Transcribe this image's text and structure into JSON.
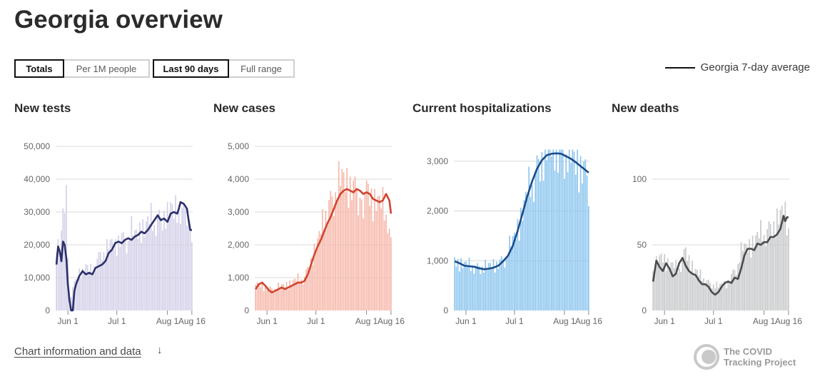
{
  "page": {
    "title": "Georgia overview",
    "toggles": {
      "metric": [
        {
          "label": "Totals",
          "active": true
        },
        {
          "label": "Per 1M people",
          "active": false
        }
      ],
      "range": [
        {
          "label": "Last 90 days",
          "active": true
        },
        {
          "label": "Full range",
          "active": false
        }
      ]
    },
    "legend": "Georgia 7-day average",
    "footer_link": "Chart information and data",
    "footer_arrow": "↓",
    "brand": {
      "line1": "The COVID",
      "line2": "Tracking Project"
    }
  },
  "chart_data": [
    {
      "type": "bar",
      "title": "New tests",
      "bar_color": "#d3d0e8",
      "line_color": "#2c2f6b",
      "ylim": [
        0,
        50000
      ],
      "yticks": [
        0,
        10000,
        20000,
        30000,
        40000,
        50000
      ],
      "ytick_labels": [
        "0",
        "10,000",
        "20,000",
        "30,000",
        "40,000",
        "50,000"
      ],
      "xtick_labels": [
        "Jun 1",
        "Jul 1",
        "Aug 1",
        "Aug 16"
      ],
      "xtick_days": [
        7,
        37,
        68,
        83
      ],
      "days": 84,
      "anchors": {
        "bars": [
          [
            0,
            22000
          ],
          [
            2,
            17000
          ],
          [
            4,
            28000
          ],
          [
            6,
            31000
          ],
          [
            8,
            3000
          ],
          [
            10,
            7000
          ],
          [
            12,
            9000
          ],
          [
            14,
            12000
          ],
          [
            16,
            11000
          ],
          [
            18,
            13000
          ],
          [
            20,
            12000
          ],
          [
            22,
            12000
          ],
          [
            24,
            14000
          ],
          [
            26,
            16000
          ],
          [
            28,
            18000
          ],
          [
            30,
            17000
          ],
          [
            32,
            19000
          ],
          [
            34,
            20000
          ],
          [
            36,
            19000
          ],
          [
            38,
            21000
          ],
          [
            40,
            22000
          ],
          [
            42,
            21000
          ],
          [
            44,
            22000
          ],
          [
            46,
            23000
          ],
          [
            48,
            22000
          ],
          [
            50,
            24000
          ],
          [
            52,
            25000
          ],
          [
            54,
            24000
          ],
          [
            56,
            26000
          ],
          [
            58,
            27000
          ],
          [
            60,
            26000
          ],
          [
            62,
            28000
          ],
          [
            64,
            27000
          ],
          [
            66,
            29000
          ],
          [
            68,
            28000
          ],
          [
            70,
            30000
          ],
          [
            72,
            29000
          ],
          [
            74,
            31000
          ],
          [
            76,
            30000
          ],
          [
            78,
            29000
          ],
          [
            80,
            31000
          ],
          [
            82,
            26000
          ],
          [
            83,
            17000
          ]
        ],
        "line": [
          [
            0,
            14000
          ],
          [
            1,
            19500
          ],
          [
            2,
            18000
          ],
          [
            3,
            15000
          ],
          [
            4,
            21000
          ],
          [
            5,
            20000
          ],
          [
            6,
            16000
          ],
          [
            7,
            8000
          ],
          [
            8,
            3000
          ],
          [
            9,
            0
          ],
          [
            10,
            0
          ],
          [
            11,
            6000
          ],
          [
            12,
            8000
          ],
          [
            14,
            10500
          ],
          [
            16,
            12000
          ],
          [
            18,
            11000
          ],
          [
            20,
            11500
          ],
          [
            22,
            11000
          ],
          [
            24,
            13000
          ],
          [
            26,
            13500
          ],
          [
            28,
            14000
          ],
          [
            30,
            15000
          ],
          [
            32,
            17500
          ],
          [
            34,
            18500
          ],
          [
            36,
            20500
          ],
          [
            38,
            21000
          ],
          [
            40,
            20500
          ],
          [
            42,
            21500
          ],
          [
            44,
            22000
          ],
          [
            46,
            21500
          ],
          [
            48,
            22500
          ],
          [
            50,
            23000
          ],
          [
            52,
            24000
          ],
          [
            54,
            23500
          ],
          [
            56,
            24500
          ],
          [
            58,
            26000
          ],
          [
            60,
            27500
          ],
          [
            62,
            29000
          ],
          [
            64,
            27500
          ],
          [
            66,
            28000
          ],
          [
            68,
            27000
          ],
          [
            70,
            29500
          ],
          [
            72,
            30000
          ],
          [
            74,
            29500
          ],
          [
            75,
            31000
          ],
          [
            76,
            33000
          ],
          [
            78,
            32500
          ],
          [
            80,
            31000
          ],
          [
            81,
            27500
          ],
          [
            82,
            24500
          ]
        ]
      }
    },
    {
      "type": "bar",
      "title": "New cases",
      "bar_color": "#f6b8aa",
      "line_color": "#d0442e",
      "ylim": [
        0,
        5000
      ],
      "yticks": [
        0,
        1000,
        2000,
        3000,
        4000,
        5000
      ],
      "ytick_labels": [
        "0",
        "1,000",
        "2,000",
        "3,000",
        "4,000",
        "5,000"
      ],
      "xtick_labels": [
        "Jun 1",
        "Jul 1",
        "Aug 1",
        "Aug 16"
      ],
      "xtick_days": [
        7,
        37,
        68,
        83
      ],
      "days": 84,
      "anchors": {
        "bars": [
          [
            0,
            800
          ],
          [
            5,
            700
          ],
          [
            10,
            650
          ],
          [
            15,
            700
          ],
          [
            20,
            800
          ],
          [
            25,
            900
          ],
          [
            30,
            1000
          ],
          [
            34,
            1500
          ],
          [
            38,
            2000
          ],
          [
            42,
            2800
          ],
          [
            45,
            3200
          ],
          [
            48,
            3400
          ],
          [
            50,
            3700
          ],
          [
            53,
            3900
          ],
          [
            56,
            3800
          ],
          [
            60,
            3700
          ],
          [
            63,
            3600
          ],
          [
            66,
            3500
          ],
          [
            69,
            3600
          ],
          [
            72,
            3300
          ],
          [
            75,
            3200
          ],
          [
            78,
            3100
          ],
          [
            81,
            2800
          ],
          [
            83,
            2000
          ]
        ],
        "line": [
          [
            0,
            650
          ],
          [
            2,
            800
          ],
          [
            4,
            850
          ],
          [
            6,
            750
          ],
          [
            8,
            620
          ],
          [
            10,
            550
          ],
          [
            12,
            600
          ],
          [
            14,
            650
          ],
          [
            16,
            700
          ],
          [
            18,
            650
          ],
          [
            20,
            700
          ],
          [
            22,
            750
          ],
          [
            24,
            800
          ],
          [
            26,
            850
          ],
          [
            28,
            850
          ],
          [
            30,
            900
          ],
          [
            32,
            1100
          ],
          [
            34,
            1400
          ],
          [
            36,
            1700
          ],
          [
            38,
            1950
          ],
          [
            40,
            2150
          ],
          [
            42,
            2400
          ],
          [
            44,
            2650
          ],
          [
            46,
            2850
          ],
          [
            48,
            3100
          ],
          [
            50,
            3350
          ],
          [
            52,
            3550
          ],
          [
            54,
            3650
          ],
          [
            56,
            3700
          ],
          [
            58,
            3650
          ],
          [
            60,
            3600
          ],
          [
            62,
            3700
          ],
          [
            64,
            3650
          ],
          [
            66,
            3550
          ],
          [
            68,
            3600
          ],
          [
            70,
            3550
          ],
          [
            72,
            3400
          ],
          [
            74,
            3350
          ],
          [
            76,
            3300
          ],
          [
            78,
            3350
          ],
          [
            80,
            3550
          ],
          [
            82,
            3350
          ],
          [
            83,
            2950
          ]
        ]
      }
    },
    {
      "type": "bar",
      "title": "Current hospitalizations",
      "bar_color": "#8cc5ee",
      "line_color": "#1a4b8c",
      "ylim": [
        0,
        3300
      ],
      "yticks": [
        0,
        1000,
        2000,
        3000
      ],
      "ytick_labels": [
        "0",
        "1,000",
        "2,000",
        "3,000"
      ],
      "xtick_labels": [
        "Jun 1",
        "Jul 1",
        "Aug 1",
        "Aug 16"
      ],
      "xtick_days": [
        7,
        37,
        68,
        83
      ],
      "days": 84,
      "anchors": {
        "bars": [
          [
            0,
            1000
          ],
          [
            5,
            900
          ],
          [
            10,
            880
          ],
          [
            15,
            850
          ],
          [
            20,
            860
          ],
          [
            25,
            900
          ],
          [
            30,
            1000
          ],
          [
            33,
            1150
          ],
          [
            36,
            1350
          ],
          [
            39,
            1650
          ],
          [
            42,
            1950
          ],
          [
            45,
            2250
          ],
          [
            48,
            2550
          ],
          [
            51,
            2800
          ],
          [
            54,
            3000
          ],
          [
            57,
            3150
          ],
          [
            60,
            3180
          ],
          [
            63,
            3200
          ],
          [
            66,
            3180
          ],
          [
            69,
            3100
          ],
          [
            72,
            3000
          ],
          [
            75,
            2900
          ],
          [
            78,
            2850
          ],
          [
            80,
            2800
          ],
          [
            83,
            2600
          ]
        ],
        "line": [
          [
            0,
            990
          ],
          [
            3,
            950
          ],
          [
            6,
            900
          ],
          [
            9,
            890
          ],
          [
            12,
            880
          ],
          [
            15,
            850
          ],
          [
            18,
            830
          ],
          [
            21,
            840
          ],
          [
            24,
            860
          ],
          [
            27,
            900
          ],
          [
            30,
            990
          ],
          [
            33,
            1100
          ],
          [
            36,
            1300
          ],
          [
            39,
            1600
          ],
          [
            42,
            1950
          ],
          [
            45,
            2300
          ],
          [
            48,
            2600
          ],
          [
            51,
            2850
          ],
          [
            54,
            3020
          ],
          [
            57,
            3120
          ],
          [
            60,
            3150
          ],
          [
            63,
            3160
          ],
          [
            66,
            3150
          ],
          [
            69,
            3100
          ],
          [
            72,
            3050
          ],
          [
            75,
            2980
          ],
          [
            78,
            2900
          ],
          [
            80,
            2850
          ],
          [
            83,
            2770
          ]
        ]
      }
    },
    {
      "type": "bar",
      "title": "New deaths",
      "bar_color": "#c8c9ca",
      "line_color": "#4a4b4c",
      "ylim": [
        0,
        125
      ],
      "yticks": [
        0,
        50,
        100
      ],
      "ytick_labels": [
        "0",
        "50",
        "100"
      ],
      "xtick_labels": [
        "Jun 1",
        "Jul 1",
        "Aug 1",
        "Aug 16"
      ],
      "xtick_days": [
        7,
        37,
        68,
        83
      ],
      "days": 84,
      "anchors": {
        "bars": [
          [
            0,
            30
          ],
          [
            5,
            40
          ],
          [
            10,
            35
          ],
          [
            15,
            30
          ],
          [
            20,
            45
          ],
          [
            25,
            30
          ],
          [
            30,
            25
          ],
          [
            35,
            20
          ],
          [
            40,
            18
          ],
          [
            45,
            20
          ],
          [
            50,
            30
          ],
          [
            55,
            45
          ],
          [
            60,
            50
          ],
          [
            65,
            55
          ],
          [
            70,
            60
          ],
          [
            75,
            65
          ],
          [
            78,
            70
          ],
          [
            80,
            75
          ],
          [
            83,
            60
          ]
        ],
        "line": [
          [
            0,
            22
          ],
          [
            2,
            38
          ],
          [
            4,
            33
          ],
          [
            6,
            30
          ],
          [
            8,
            36
          ],
          [
            10,
            32
          ],
          [
            12,
            26
          ],
          [
            14,
            28
          ],
          [
            16,
            36
          ],
          [
            18,
            40
          ],
          [
            20,
            34
          ],
          [
            22,
            30
          ],
          [
            24,
            28
          ],
          [
            26,
            27
          ],
          [
            28,
            23
          ],
          [
            30,
            20
          ],
          [
            32,
            20
          ],
          [
            34,
            18
          ],
          [
            36,
            14
          ],
          [
            38,
            12
          ],
          [
            40,
            14
          ],
          [
            42,
            18
          ],
          [
            44,
            21
          ],
          [
            46,
            22
          ],
          [
            48,
            21
          ],
          [
            50,
            25
          ],
          [
            52,
            24
          ],
          [
            54,
            32
          ],
          [
            56,
            42
          ],
          [
            58,
            47
          ],
          [
            60,
            47
          ],
          [
            62,
            46
          ],
          [
            64,
            51
          ],
          [
            66,
            50
          ],
          [
            68,
            52
          ],
          [
            70,
            52
          ],
          [
            72,
            56
          ],
          [
            74,
            56
          ],
          [
            76,
            58
          ],
          [
            78,
            62
          ],
          [
            80,
            72
          ],
          [
            81,
            68
          ],
          [
            82,
            71
          ]
        ]
      }
    }
  ]
}
